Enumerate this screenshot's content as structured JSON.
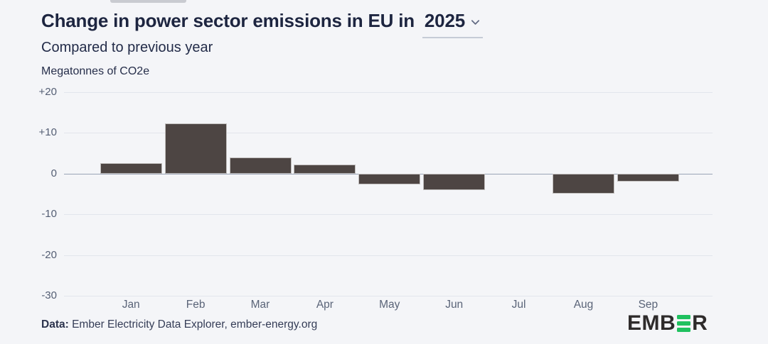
{
  "header": {
    "title_prefix": "Change in power sector emissions in EU in",
    "year_value": "2025",
    "subtitle": "Compared to previous year",
    "units_label": "Megatonnes of CO2e"
  },
  "chart_data": {
    "type": "bar",
    "title": "Change in power sector emissions in EU in 2025",
    "subtitle": "Compared to previous year",
    "ylabel": "Megatonnes of CO2e",
    "xlabel": "",
    "categories": [
      "Jan",
      "Feb",
      "Mar",
      "Apr",
      "May",
      "Jun",
      "Jul",
      "Aug",
      "Sep"
    ],
    "values": [
      2.5,
      12.4,
      4.0,
      2.3,
      -2.6,
      -4.1,
      0,
      -4.9,
      -1.9
    ],
    "ylim": [
      -30,
      20
    ],
    "ytick_values": [
      20,
      10,
      0,
      -10,
      -20,
      -30
    ],
    "ytick_labels": [
      "+20",
      "+10",
      "0",
      "-10",
      "-20",
      "-30"
    ],
    "grid": true,
    "legend": "none",
    "bar_color": "#4d4543",
    "gridline_color": "#e2e5ec",
    "zeroline_color": "#9aa4b6"
  },
  "footer": {
    "source_label": "Data:",
    "source_text": " Ember Electricity Data Explorer, ember-energy.org",
    "logo": {
      "text_left": "EMB",
      "text_right": "R",
      "middle_icon": "ember-green-e-bars",
      "green": "#1fc15f",
      "dark": "#2e2b2b"
    }
  }
}
